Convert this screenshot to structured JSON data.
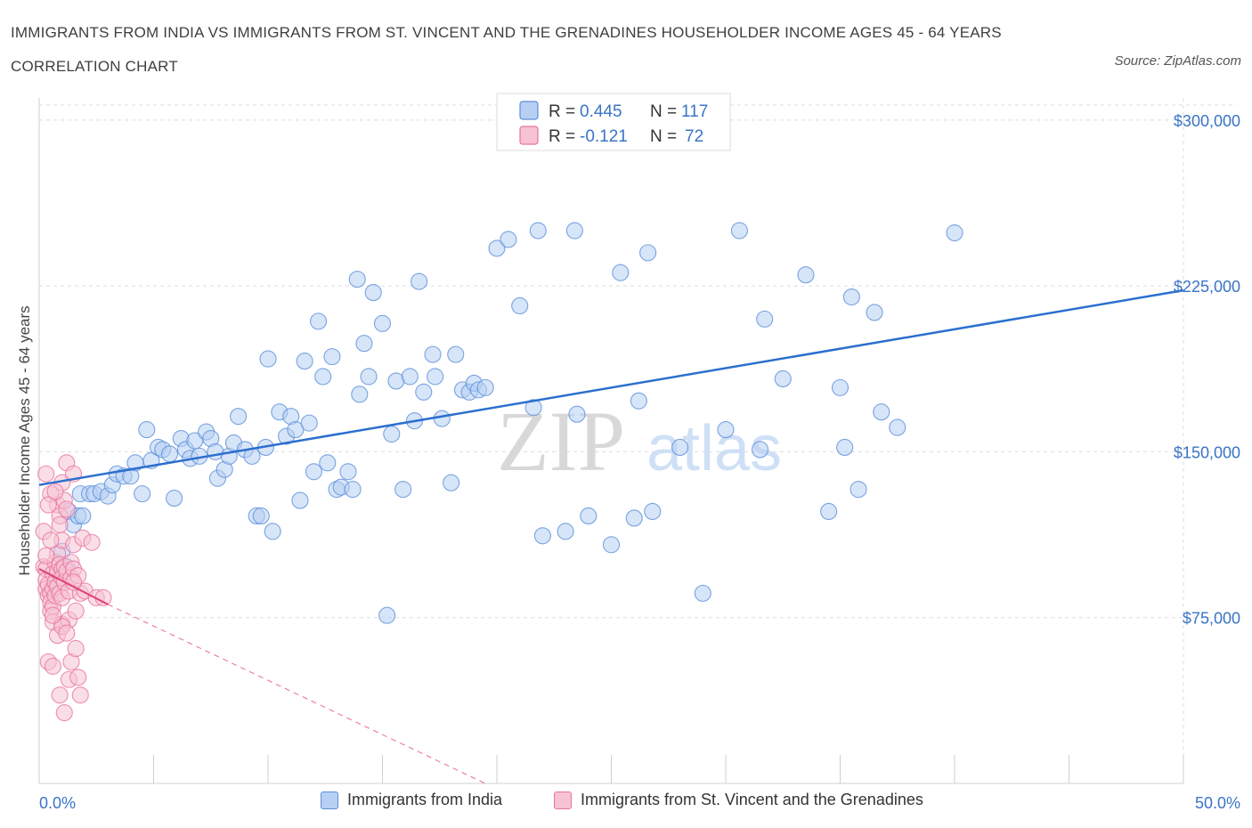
{
  "title": "IMMIGRANTS FROM INDIA VS IMMIGRANTS FROM ST. VINCENT AND THE GRENADINES HOUSEHOLDER INCOME AGES 45 - 64 YEARS CORRELATION CHART",
  "source": "Source: ZipAtlas.com",
  "watermark": {
    "zip": "ZIP",
    "atlas": "atlas"
  },
  "colors": {
    "blue": "#5b8fd9",
    "blue_fill": "#b7cff3",
    "blue_line": "#2b6fce",
    "pink": "#e8739c",
    "pink_fill": "#f6c2d4",
    "pink_line": "#e0457d",
    "axis_text": "#3a74c6",
    "grid": "#dcdcdc"
  },
  "legend_top": {
    "r_label": "R =",
    "n_label": "N =",
    "series": [
      {
        "r": "0.445",
        "n": "117"
      },
      {
        "r": "-0.121",
        "n": "72"
      }
    ]
  },
  "chart_data": {
    "type": "scatter",
    "title": "IMMIGRANTS FROM INDIA VS IMMIGRANTS FROM ST. VINCENT AND THE GRENADINES HOUSEHOLDER INCOME AGES 45 - 64 YEARS CORRELATION CHART",
    "xlabel": "",
    "ylabel": "Householder Income Ages 45 - 64 years",
    "xlim": [
      0,
      50
    ],
    "ylim": [
      0,
      310000
    ],
    "x_tick_labels": [
      "0.0%",
      "50.0%"
    ],
    "y_ticks": [
      75000,
      150000,
      225000,
      300000
    ],
    "y_tick_labels": [
      "$75,000",
      "$150,000",
      "$225,000",
      "$300,000"
    ],
    "grid": true,
    "legend_position": "top-center",
    "series": [
      {
        "name": "Immigrants from India",
        "color": "blue",
        "r": 0.445,
        "n": 117,
        "trend": {
          "x": [
            0,
            50
          ],
          "y": [
            135000,
            223000
          ],
          "style": "solid"
        },
        "points": [
          [
            1.0,
            105000
          ],
          [
            1.0,
            97000
          ],
          [
            1.2,
            98000
          ],
          [
            1.3,
            123000
          ],
          [
            1.5,
            117000
          ],
          [
            1.7,
            121000
          ],
          [
            1.8,
            131000
          ],
          [
            1.9,
            121000
          ],
          [
            2.2,
            131000
          ],
          [
            2.4,
            131000
          ],
          [
            2.7,
            132000
          ],
          [
            3.0,
            130000
          ],
          [
            3.2,
            135000
          ],
          [
            3.4,
            140000
          ],
          [
            3.7,
            139000
          ],
          [
            4.0,
            139000
          ],
          [
            4.2,
            145000
          ],
          [
            4.5,
            131000
          ],
          [
            4.7,
            160000
          ],
          [
            4.9,
            146000
          ],
          [
            5.2,
            152000
          ],
          [
            5.4,
            151000
          ],
          [
            5.7,
            149000
          ],
          [
            5.9,
            129000
          ],
          [
            6.2,
            156000
          ],
          [
            6.4,
            151000
          ],
          [
            6.6,
            147000
          ],
          [
            6.8,
            155000
          ],
          [
            7.0,
            148000
          ],
          [
            7.3,
            159000
          ],
          [
            7.5,
            156000
          ],
          [
            7.7,
            150000
          ],
          [
            7.8,
            138000
          ],
          [
            8.1,
            142000
          ],
          [
            8.3,
            148000
          ],
          [
            8.5,
            154000
          ],
          [
            8.7,
            166000
          ],
          [
            9.0,
            151000
          ],
          [
            9.3,
            148000
          ],
          [
            9.5,
            121000
          ],
          [
            9.7,
            121000
          ],
          [
            9.9,
            152000
          ],
          [
            10.0,
            192000
          ],
          [
            10.2,
            114000
          ],
          [
            10.5,
            168000
          ],
          [
            10.8,
            157000
          ],
          [
            11.0,
            166000
          ],
          [
            11.2,
            160000
          ],
          [
            11.4,
            128000
          ],
          [
            11.6,
            191000
          ],
          [
            11.8,
            163000
          ],
          [
            12.0,
            141000
          ],
          [
            12.2,
            209000
          ],
          [
            12.4,
            184000
          ],
          [
            12.6,
            145000
          ],
          [
            12.8,
            193000
          ],
          [
            13.0,
            133000
          ],
          [
            13.2,
            134000
          ],
          [
            13.5,
            141000
          ],
          [
            13.7,
            133000
          ],
          [
            13.9,
            228000
          ],
          [
            14.0,
            176000
          ],
          [
            14.2,
            199000
          ],
          [
            14.4,
            184000
          ],
          [
            14.6,
            222000
          ],
          [
            15.0,
            208000
          ],
          [
            15.2,
            76000
          ],
          [
            15.4,
            158000
          ],
          [
            15.6,
            182000
          ],
          [
            15.9,
            133000
          ],
          [
            16.2,
            184000
          ],
          [
            16.4,
            164000
          ],
          [
            16.6,
            227000
          ],
          [
            16.8,
            177000
          ],
          [
            17.2,
            194000
          ],
          [
            17.3,
            184000
          ],
          [
            17.6,
            165000
          ],
          [
            18.0,
            136000
          ],
          [
            18.2,
            194000
          ],
          [
            18.5,
            178000
          ],
          [
            18.8,
            177000
          ],
          [
            19.0,
            181000
          ],
          [
            19.2,
            178000
          ],
          [
            19.5,
            179000
          ],
          [
            20.0,
            242000
          ],
          [
            20.5,
            246000
          ],
          [
            21.0,
            216000
          ],
          [
            21.6,
            170000
          ],
          [
            21.8,
            250000
          ],
          [
            22.0,
            112000
          ],
          [
            23.0,
            114000
          ],
          [
            23.4,
            250000
          ],
          [
            23.5,
            167000
          ],
          [
            24.0,
            121000
          ],
          [
            25.0,
            108000
          ],
          [
            25.4,
            231000
          ],
          [
            26.0,
            120000
          ],
          [
            26.2,
            173000
          ],
          [
            26.6,
            240000
          ],
          [
            26.8,
            123000
          ],
          [
            28.0,
            152000
          ],
          [
            29.0,
            86000
          ],
          [
            30.0,
            160000
          ],
          [
            30.6,
            250000
          ],
          [
            31.5,
            151000
          ],
          [
            31.7,
            210000
          ],
          [
            32.5,
            183000
          ],
          [
            33.5,
            230000
          ],
          [
            34.5,
            123000
          ],
          [
            35.0,
            179000
          ],
          [
            35.2,
            152000
          ],
          [
            35.8,
            133000
          ],
          [
            35.5,
            220000
          ],
          [
            36.5,
            213000
          ],
          [
            36.8,
            168000
          ],
          [
            37.5,
            161000
          ],
          [
            40.0,
            249000
          ]
        ]
      },
      {
        "name": "Immigrants from St. Vincent and the Grenadines",
        "color": "pink",
        "r": -0.121,
        "n": 72,
        "trend": {
          "x": [
            0,
            3.0
          ],
          "y": [
            97000,
            81000
          ],
          "style": "solid"
        },
        "trend_extension": {
          "x": [
            3.0,
            19.5
          ],
          "y": [
            81000,
            0
          ],
          "style": "dashed"
        },
        "points": [
          [
            0.2,
            114000
          ],
          [
            0.2,
            98000
          ],
          [
            0.3,
            97000
          ],
          [
            0.3,
            92000
          ],
          [
            0.3,
            88000
          ],
          [
            0.4,
            90000
          ],
          [
            0.4,
            85000
          ],
          [
            0.5,
            86000
          ],
          [
            0.5,
            82000
          ],
          [
            0.5,
            78000
          ],
          [
            0.6,
            95000
          ],
          [
            0.6,
            88000
          ],
          [
            0.6,
            80000
          ],
          [
            0.6,
            73000
          ],
          [
            0.7,
            100000
          ],
          [
            0.7,
            91000
          ],
          [
            0.7,
            85000
          ],
          [
            0.8,
            126000
          ],
          [
            0.8,
            104000
          ],
          [
            0.8,
            96000
          ],
          [
            0.8,
            89000
          ],
          [
            0.9,
            121000
          ],
          [
            0.9,
            99000
          ],
          [
            0.9,
            86000
          ],
          [
            1.0,
            136000
          ],
          [
            1.0,
            110000
          ],
          [
            1.0,
            97000
          ],
          [
            1.0,
            93000
          ],
          [
            1.0,
            84000
          ],
          [
            1.0,
            72000
          ],
          [
            1.1,
            128000
          ],
          [
            1.1,
            98000
          ],
          [
            1.1,
            91000
          ],
          [
            1.2,
            145000
          ],
          [
            1.2,
            124000
          ],
          [
            1.2,
            96000
          ],
          [
            1.3,
            87000
          ],
          [
            1.3,
            74000
          ],
          [
            1.4,
            100000
          ],
          [
            1.4,
            93000
          ],
          [
            1.5,
            140000
          ],
          [
            1.5,
            108000
          ],
          [
            1.5,
            97000
          ],
          [
            1.6,
            78000
          ],
          [
            1.7,
            94000
          ],
          [
            1.8,
            86000
          ],
          [
            1.9,
            111000
          ],
          [
            2.0,
            87000
          ],
          [
            2.3,
            109000
          ],
          [
            2.5,
            84000
          ],
          [
            2.8,
            84000
          ],
          [
            0.4,
            55000
          ],
          [
            0.6,
            53000
          ],
          [
            0.9,
            40000
          ],
          [
            1.1,
            32000
          ],
          [
            1.3,
            47000
          ],
          [
            1.4,
            55000
          ],
          [
            1.6,
            61000
          ],
          [
            1.7,
            48000
          ],
          [
            1.8,
            40000
          ],
          [
            0.3,
            140000
          ],
          [
            0.5,
            131000
          ],
          [
            0.4,
            126000
          ],
          [
            0.7,
            132000
          ],
          [
            0.9,
            117000
          ],
          [
            0.5,
            110000
          ],
          [
            0.3,
            103000
          ],
          [
            0.8,
            67000
          ],
          [
            1.0,
            71000
          ],
          [
            1.2,
            68000
          ],
          [
            0.6,
            76000
          ],
          [
            1.5,
            91000
          ]
        ]
      }
    ]
  },
  "legend_bottom": {
    "items": [
      {
        "label": "Immigrants from India"
      },
      {
        "label": "Immigrants from St. Vincent and the Grenadines"
      }
    ]
  }
}
